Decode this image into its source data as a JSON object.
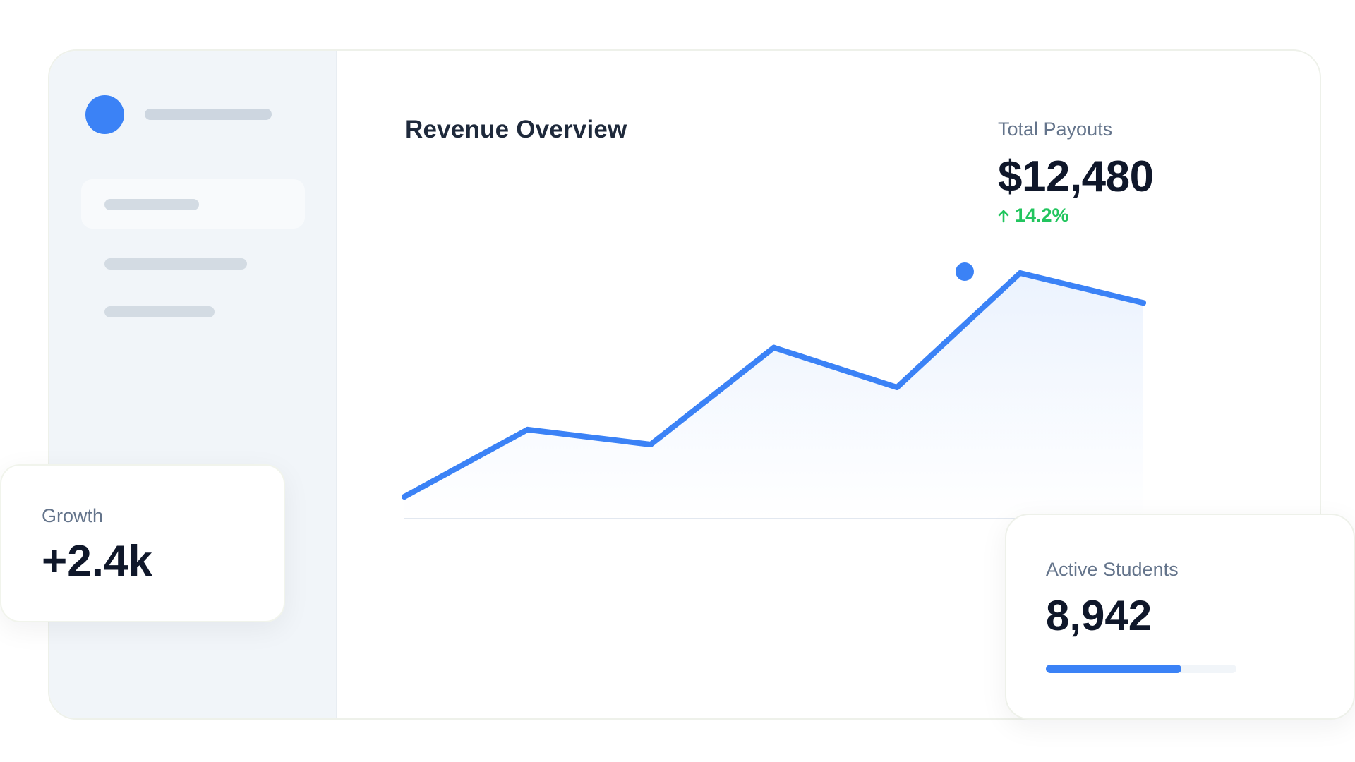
{
  "panel": {
    "title": "Revenue Overview"
  },
  "total_payouts": {
    "label": "Total Payouts",
    "value": "$12,480",
    "delta": "14.2%",
    "delta_icon": "arrow-up-icon"
  },
  "growth": {
    "label": "Growth",
    "value": "+2.4k"
  },
  "active_students": {
    "label": "Active Students",
    "value": "8,942",
    "progress_fraction": 0.71
  },
  "colors": {
    "accent": "#3b82f6",
    "positive": "#22c55e",
    "sidebar_bg": "#f1f5f9",
    "text_dark": "#0f172a",
    "text_muted": "#64748b"
  },
  "chart_data": {
    "type": "line",
    "title": "",
    "xlabel": "",
    "ylabel": "",
    "x": [
      1,
      2,
      3,
      4,
      5,
      6,
      7
    ],
    "series": [
      {
        "values": [
          28,
          55,
          49,
          88,
          72,
          118,
          106
        ]
      }
    ],
    "highlight_point": {
      "x": 5.55,
      "y": 118
    },
    "ylim": [
      0,
      130
    ],
    "grid": false,
    "legend": "none"
  }
}
